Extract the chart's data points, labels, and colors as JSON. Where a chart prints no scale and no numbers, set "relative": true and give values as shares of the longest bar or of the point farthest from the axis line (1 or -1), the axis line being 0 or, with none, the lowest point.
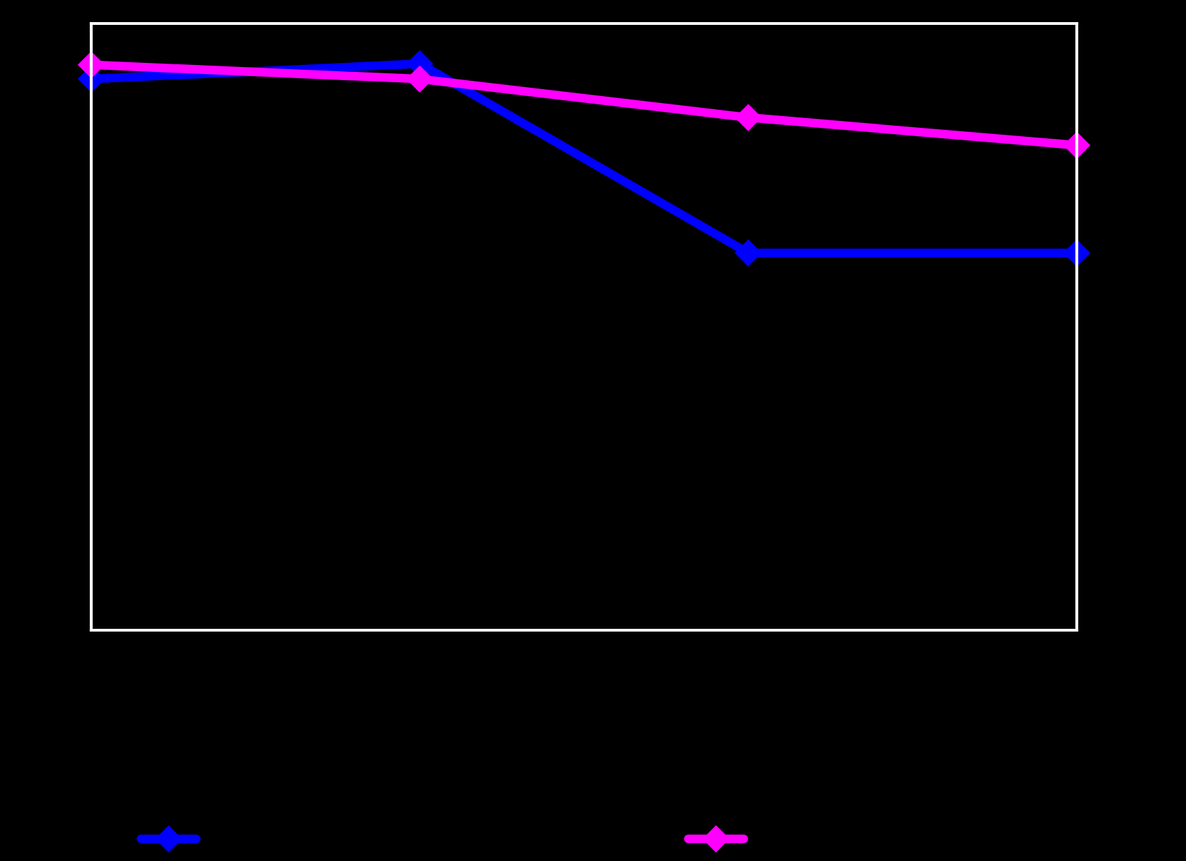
{
  "chart_data": {
    "type": "line",
    "relative": true,
    "categories": [
      null,
      null,
      null,
      null
    ],
    "series": [
      {
        "color": "#0000ff",
        "values": [
          0.973,
          1.0,
          0.666,
          0.666
        ]
      },
      {
        "color": "#ff00ff",
        "values": [
          0.998,
          0.973,
          0.905,
          0.856
        ]
      }
    ],
    "marker": "diamond",
    "line_style": "solid",
    "grid": false
  }
}
